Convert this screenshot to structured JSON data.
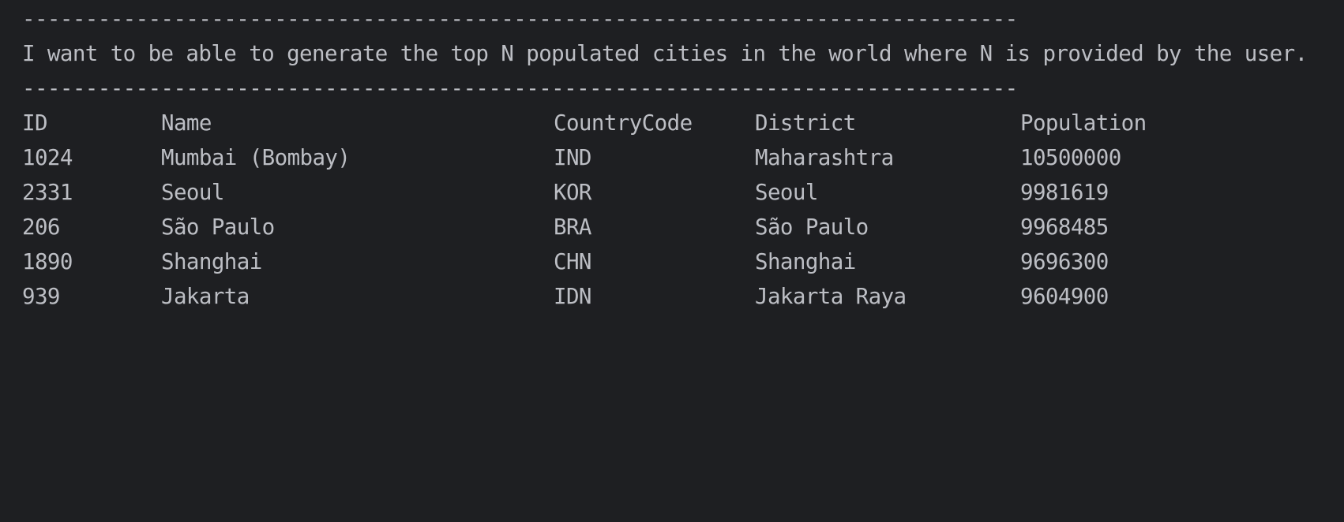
{
  "separator_top": "-------------------------------------------------------------------------------",
  "story": "I want to be able to generate the top N populated cities in the world where N is provided by the user.",
  "separator_bottom": "-------------------------------------------------------------------------------",
  "table": {
    "headers": {
      "id": "ID",
      "name": "Name",
      "country_code": "CountryCode",
      "district": "District",
      "population": "Population"
    },
    "rows": [
      {
        "id": "1024",
        "name": "Mumbai (Bombay)",
        "country_code": "IND",
        "district": "Maharashtra",
        "population": "10500000"
      },
      {
        "id": "2331",
        "name": "Seoul",
        "country_code": "KOR",
        "district": "Seoul",
        "population": "9981619"
      },
      {
        "id": "206",
        "name": "São Paulo",
        "country_code": "BRA",
        "district": "São Paulo",
        "population": "9968485"
      },
      {
        "id": "1890",
        "name": "Shanghai",
        "country_code": "CHN",
        "district": "Shanghai",
        "population": "9696300"
      },
      {
        "id": "939",
        "name": "Jakarta",
        "country_code": "IDN",
        "district": "Jakarta Raya",
        "population": "9604900"
      }
    ]
  }
}
